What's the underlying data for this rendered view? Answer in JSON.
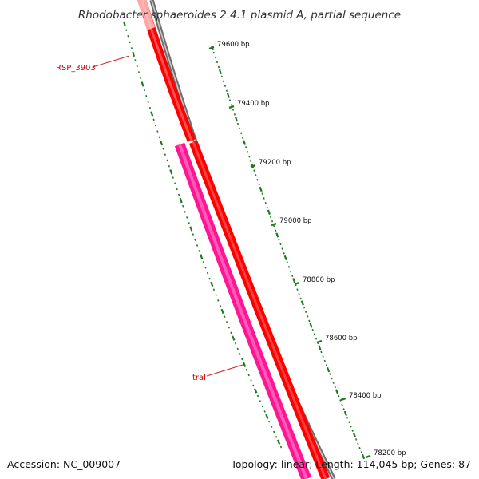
{
  "title": "Rhodobacter sphaeroides 2.4.1 plasmid A, partial sequence",
  "footer": {
    "accession": "Accession: NC_009007",
    "summary": "Topology: linear; Length: 114,045 bp; Genes: 87"
  },
  "bp_labels": [
    "79600 bp",
    "79400 bp",
    "79200 bp",
    "79000 bp",
    "78800 bp",
    "78600 bp",
    "78400 bp",
    "78200 bp"
  ],
  "genes": [
    {
      "name": "RSP_3903",
      "color": "#ff0000"
    },
    {
      "name": "traI",
      "color": "#ff1493"
    }
  ],
  "colors": {
    "backbone": "#7a7a7a",
    "ticks": "#1e7a1e",
    "gene_label": "#cc0000",
    "leader": "#d61e1e"
  }
}
